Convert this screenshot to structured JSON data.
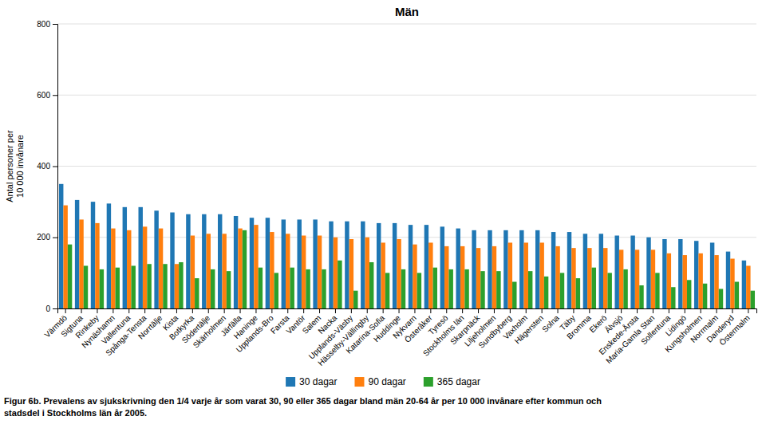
{
  "chart_data": {
    "type": "bar",
    "title": "Män",
    "ylabel": "Antal personer per\n10 000 invånare",
    "ylim": [
      0,
      800
    ],
    "yticks": [
      0,
      200,
      400,
      600,
      800
    ],
    "grid": true,
    "legend": "bottom",
    "categories": [
      "Värmdö",
      "Sigtuna",
      "Rinkeby",
      "Nynäshamn",
      "Vallentuna",
      "Spånga-Tensta",
      "Norrtälje",
      "Kista",
      "Botkyrka",
      "Södertälje",
      "Skärholmen",
      "Järfälla",
      "Haninge",
      "Upplands-Bro",
      "Farsta",
      "Vantör",
      "Salem",
      "Nacka",
      "Upplands-Väsby",
      "Hässelby-Vällingby",
      "Katarina-Sofia",
      "Huddinge",
      "Nykvarn",
      "Österåker",
      "Tyresö",
      "Stockholms län",
      "Skarpnäck",
      "Liljeholmen",
      "Sundbyberg",
      "Vaxholm",
      "Hägersten",
      "Solna",
      "Täby",
      "Bromma",
      "Ekerö",
      "Älvsjö",
      "Enskede-Årsta",
      "Maria-Gamla Stan",
      "Sollentuna",
      "Lidingö",
      "Kungsholmen",
      "Norrmalm",
      "Danderyd",
      "Östermalm"
    ],
    "series": [
      {
        "name": "30 dagar",
        "values": [
          350,
          305,
          300,
          295,
          285,
          285,
          275,
          270,
          265,
          265,
          265,
          260,
          255,
          255,
          250,
          250,
          250,
          245,
          245,
          245,
          240,
          240,
          235,
          235,
          230,
          225,
          220,
          220,
          220,
          220,
          220,
          215,
          215,
          210,
          210,
          205,
          205,
          200,
          195,
          195,
          190,
          185,
          160,
          135
        ]
      },
      {
        "name": "90 dagar",
        "values": [
          290,
          250,
          240,
          225,
          220,
          230,
          225,
          125,
          205,
          210,
          210,
          225,
          235,
          215,
          210,
          205,
          205,
          200,
          195,
          200,
          185,
          195,
          180,
          185,
          175,
          175,
          170,
          175,
          185,
          185,
          185,
          175,
          170,
          170,
          170,
          165,
          165,
          165,
          155,
          150,
          155,
          150,
          140,
          120
        ]
      },
      {
        "name": "365 dagar",
        "values": [
          180,
          120,
          110,
          115,
          120,
          125,
          125,
          130,
          85,
          110,
          105,
          220,
          115,
          100,
          115,
          110,
          110,
          135,
          50,
          130,
          100,
          110,
          100,
          115,
          110,
          110,
          105,
          105,
          75,
          105,
          90,
          100,
          85,
          115,
          100,
          110,
          65,
          100,
          60,
          80,
          70,
          55,
          75,
          50
        ]
      }
    ],
    "annotations": [
      "Figur 6b. Prevalens av sjukskrivning den 1/4 varje år som varat 30, 90 eller 365 dagar bland män 20-64 år per 10 000 invånare efter kommun och",
      "stadsdel i Stockholms län år 2005."
    ]
  }
}
